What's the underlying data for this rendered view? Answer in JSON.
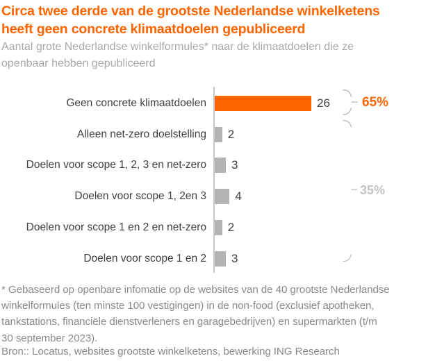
{
  "header": {
    "title_lines": [
      "Circa twee derde van de grootste Nederlandse winkelketens",
      "heeft geen concrete klimaatdoelen gepubliceerd"
    ],
    "subtitle_lines": [
      "Aantal grote Nederlandse winkelformules* naar de klimaatdoelen die ze",
      "openbaar hebben gepubliceerd"
    ]
  },
  "chart_data": {
    "type": "bar",
    "orientation": "horizontal",
    "title": "Circa twee derde van de grootste Nederlandse winkelketens heeft geen concrete klimaatdoelen gepubliceerd",
    "subtitle": "Aantal grote Nederlandse winkelformules* naar de klimaatdoelen die ze openbaar hebben gepubliceerd",
    "categories": [
      "Geen concrete klimaatdoelen",
      "Alleen net-zero doelstelling",
      "Doelen voor scope 1, 2, 3 en net-zero",
      "Doelen voor scope 1, 2en 3",
      "Doelen voor scope 1 en 2 en net-zero",
      "Doelen voor scope 1 en 2"
    ],
    "values": [
      26,
      2,
      3,
      4,
      2,
      3
    ],
    "bar_colors": [
      "#fc6502",
      "#b3b3b3",
      "#b3b3b3",
      "#b3b3b3",
      "#b3b3b3",
      "#b3b3b3"
    ],
    "xlim": [
      0,
      26
    ],
    "grid": false,
    "legend": false,
    "annotations": [
      {
        "label": "65%",
        "color": "#fc6502",
        "style": "brace",
        "spans_categories": [
          0
        ]
      },
      {
        "label": "35%",
        "color": "#c4c4c4",
        "style": "brace",
        "spans_categories": [
          1,
          2,
          3,
          4,
          5
        ]
      }
    ]
  },
  "footer": {
    "footnote_lines": [
      "* Gebaseerd op openbare infomatie op de websites van de 40 grootste Nederlandse",
      "winkelformules (ten minste 100 vestigingen) in de non-food (exclusief apotheken,",
      "tankstations, financiële dienstverleners en garagebedrijven) en supermarkten (t/m",
      "30 september 2023)."
    ],
    "source": "Bron:: Locatus, websites grootste winkelketens, bewerking ING Research"
  },
  "colors": {
    "accent_orange": "#fc6502",
    "bar_gray": "#b3b3b3",
    "text_dark": "#3f3f3f",
    "subtitle_gray": "#a9a9a9",
    "footnote_gray": "#8a8a8a",
    "axis_gray": "#c6c6c6"
  }
}
